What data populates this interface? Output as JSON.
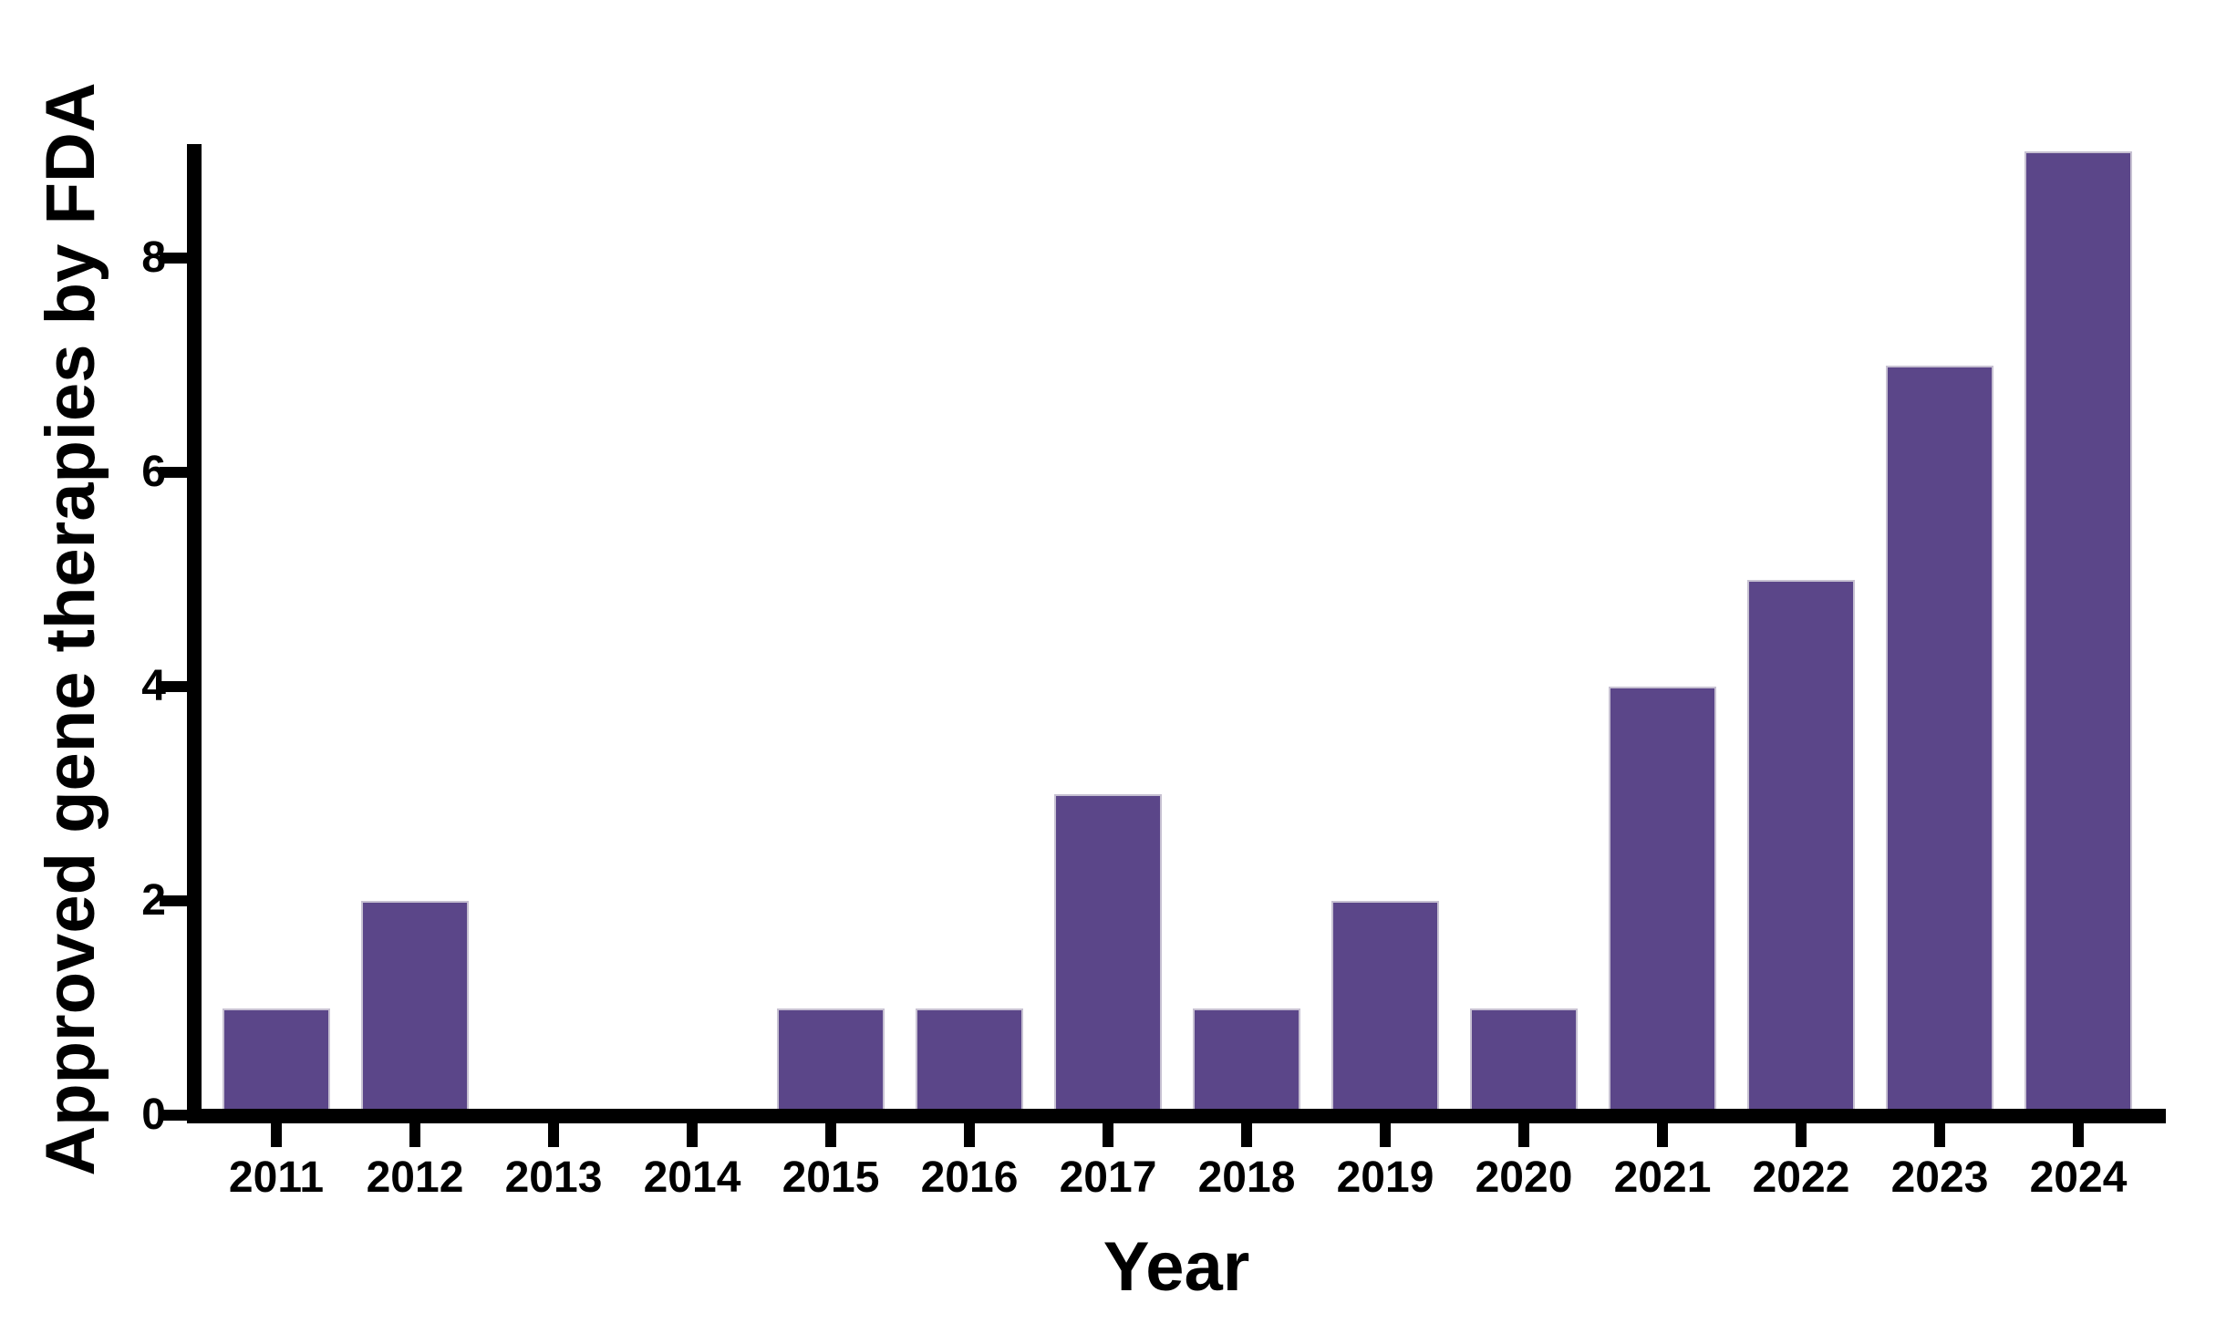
{
  "chart_data": {
    "type": "bar",
    "title": "",
    "xlabel": "Year",
    "ylabel": "Approved gene therapies by FDA",
    "categories": [
      "2011",
      "2012",
      "2013",
      "2014",
      "2015",
      "2016",
      "2017",
      "2018",
      "2019",
      "2020",
      "2021",
      "2022",
      "2023",
      "2024"
    ],
    "values": [
      1,
      2,
      0,
      0,
      1,
      1,
      3,
      1,
      2,
      1,
      4,
      5,
      7,
      9
    ],
    "yticks": [
      "0",
      "2",
      "4",
      "6",
      "8"
    ],
    "ytick_values": [
      0,
      2,
      4,
      6,
      8
    ],
    "ylim": [
      0,
      9
    ],
    "grid": false,
    "legend_position": "none",
    "bar_color": "#5B4689",
    "axis_color": "#000000",
    "text_color": "#000000",
    "background_color": "#ffffff"
  }
}
